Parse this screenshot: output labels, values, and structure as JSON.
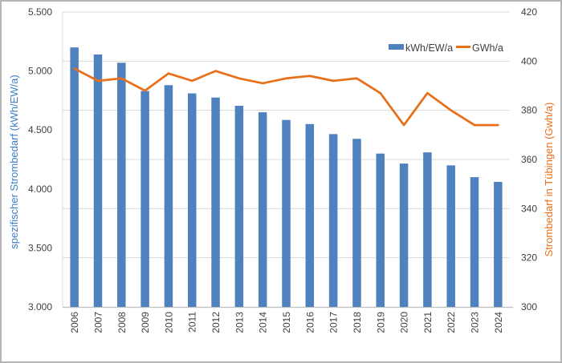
{
  "chart_data": {
    "type": "bar",
    "combo": "bar series on left axis + line series on right axis",
    "title": "",
    "categories": [
      "2006",
      "2007",
      "2008",
      "2009",
      "2010",
      "2011",
      "2012",
      "2013",
      "2014",
      "2015",
      "2016",
      "2017",
      "2018",
      "2019",
      "2020",
      "2021",
      "2022",
      "2023",
      "2024"
    ],
    "series": [
      {
        "name": "kWh/EW/a",
        "type": "bar",
        "axis": "left",
        "color": "#4e81bd",
        "values": [
          5200,
          5140,
          5070,
          4830,
          4880,
          4810,
          4775,
          4705,
          4650,
          4585,
          4550,
          4465,
          4425,
          4300,
          4215,
          4310,
          4200,
          4100,
          4060
        ]
      },
      {
        "name": "GWh/a",
        "type": "line",
        "axis": "right",
        "color": "#e8701a",
        "values": [
          397,
          392,
          393,
          388,
          395,
          392,
          396,
          393,
          391,
          393,
          394,
          392,
          393,
          387,
          374,
          387,
          380,
          374,
          374
        ]
      }
    ],
    "left_axis": {
      "title": "spezifischer Strombedarf (kWh/EW/a)",
      "color": "#3d7ec7",
      "min": 3000,
      "max": 5500,
      "ticks": [
        3000,
        3500,
        4000,
        4500,
        5000,
        5500
      ],
      "tick_labels": [
        "3.000",
        "3.500",
        "4.000",
        "4.500",
        "5.000",
        "5.500"
      ]
    },
    "right_axis": {
      "title": "Strombedarf in Tübingen (Gwh/a)",
      "color": "#e8701a",
      "min": 300,
      "max": 420,
      "ticks": [
        300,
        320,
        340,
        360,
        380,
        400,
        420
      ],
      "tick_labels": [
        "300",
        "320",
        "340",
        "360",
        "380",
        "400",
        "420"
      ]
    },
    "grid": "horizontal gridlines aligned to right-axis ticks (every 20 GWh/a)",
    "legend_position": "inside plot, top right",
    "legend": {
      "bar_label": "kWh/EW/a",
      "line_label": "GWh/a"
    },
    "colors": {
      "gridline": "#d9d9d9",
      "axis_line": "#bfbfbf",
      "tick_text": "#404040",
      "background": "#ffffff",
      "frame_border": "#b5b5b5"
    }
  }
}
